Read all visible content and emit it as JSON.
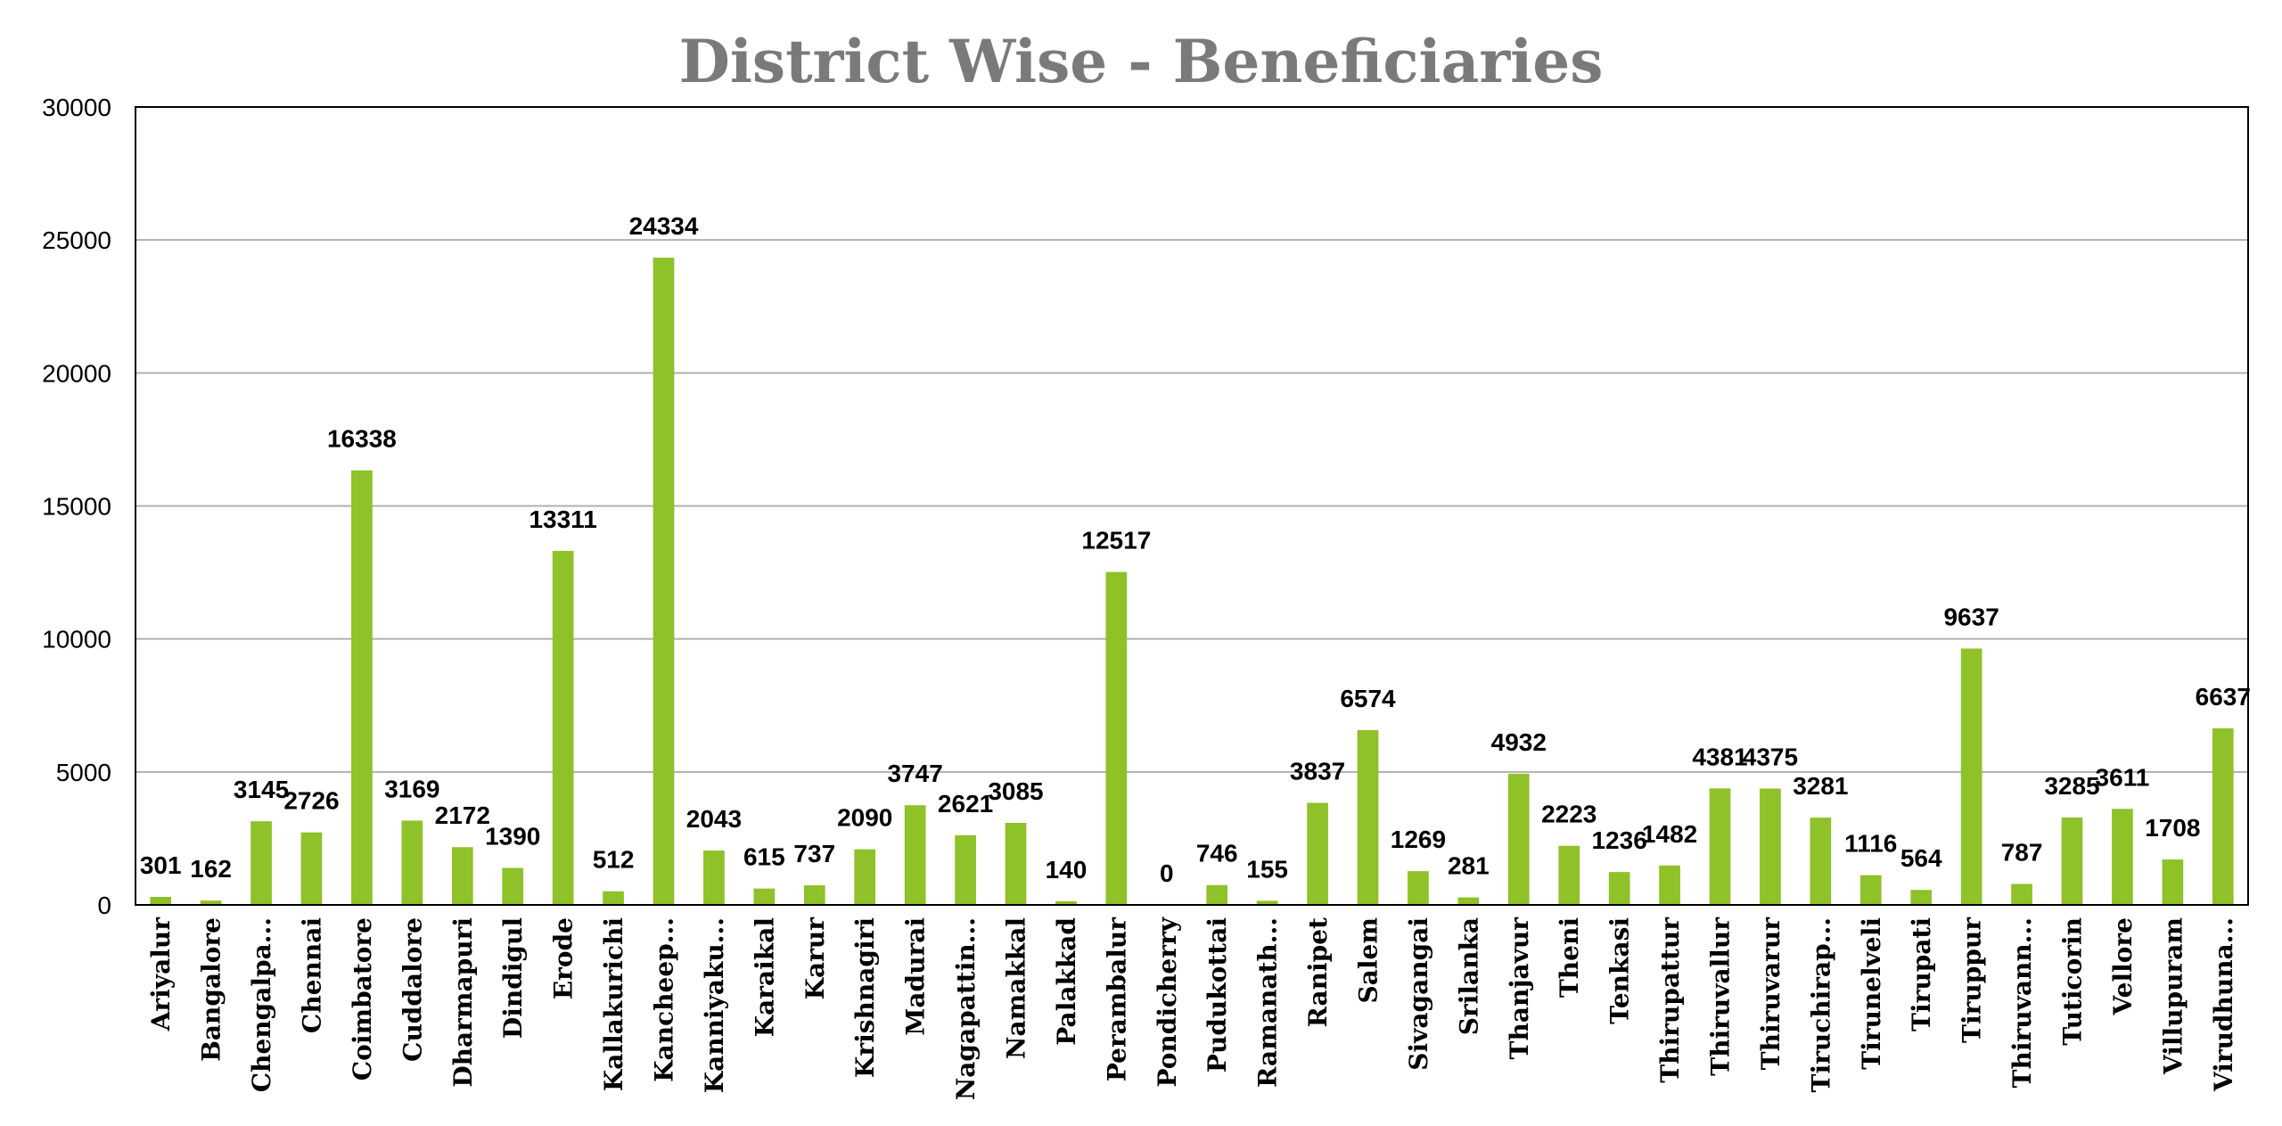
{
  "chart_data": {
    "type": "bar",
    "title": "District Wise - Beneficiaries",
    "xlabel": "",
    "ylabel": "",
    "ylim": [
      0,
      30000
    ],
    "yticks": [
      0,
      5000,
      10000,
      15000,
      20000,
      25000,
      30000
    ],
    "grid": true,
    "bar_color": "#8fc129",
    "categories": [
      "Ariyalur",
      "Bangalore",
      "Chengalpa...",
      "Chennai",
      "Coimbatore",
      "Cuddalore",
      "Dharmapuri",
      "Dindigul",
      "Erode",
      "Kallakurichi",
      "Kancheep...",
      "Kanniyaku...",
      "Karaikal",
      "Karur",
      "Krishnagiri",
      "Madurai",
      "Nagapattin...",
      "Namakkal",
      "Palakkad",
      "Perambalur",
      "Pondicherry",
      "Pudukottai",
      "Ramanath...",
      "Ranipet",
      "Salem",
      "Sivagangai",
      "Srilanka",
      "Thanjavur",
      "Theni",
      "Tenkasi",
      "Thirupattur",
      "Thiruvallur",
      "Thiruvarur",
      "Tiruchirap...",
      "Tirunelveli",
      "Tirupati",
      "Tiruppur",
      "Thiruvann...",
      "Tuticorin",
      "Vellore",
      "Villupuram",
      "Virudhuna..."
    ],
    "values": [
      301,
      162,
      3145,
      2726,
      16338,
      3169,
      2172,
      1390,
      13311,
      512,
      24334,
      2043,
      615,
      737,
      2090,
      3747,
      2621,
      3085,
      140,
      12517,
      0,
      746,
      155,
      3837,
      6574,
      1269,
      281,
      4932,
      2223,
      1236,
      1482,
      4381,
      4375,
      3281,
      1116,
      564,
      9637,
      787,
      3285,
      3611,
      1708,
      6637
    ],
    "data_labels": [
      "301",
      "162",
      "3145",
      "2726",
      "16338",
      "3169",
      "2172",
      "1390",
      "13311",
      "512",
      "24334",
      "2043",
      "615",
      "737",
      "2090",
      "3747",
      "2621",
      "3085",
      "140",
      "12517",
      "0",
      "746",
      "155",
      "3837",
      "6574",
      "1269",
      "281",
      "4932",
      "2223",
      "1236",
      "1482",
      "4381",
      "4375",
      "3281",
      "1116",
      "564",
      "9637",
      "787",
      "3285",
      "3611",
      "1708",
      "6637"
    ]
  }
}
